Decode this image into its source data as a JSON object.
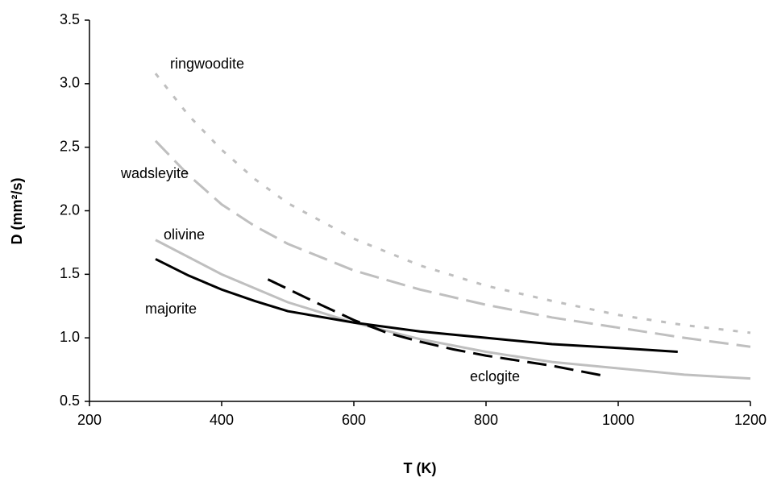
{
  "chart_data": {
    "type": "line",
    "x_label": "T (K)",
    "y_label": "D  (mm²/s)",
    "xlim": [
      200,
      1200
    ],
    "xticks": [
      200,
      400,
      600,
      800,
      1000,
      1200
    ],
    "ylim": [
      0.5,
      3.5
    ],
    "yticks": [
      0.5,
      {
        "value": 1,
        "label": "1.0"
      },
      1.5,
      {
        "value": 2,
        "label": "2.0"
      },
      2.5,
      {
        "value": 3,
        "label": "3.0"
      },
      3.5
    ],
    "grid": false,
    "series": [
      {
        "name": "ringwoodite",
        "color": "#bfbfbf",
        "style": "dotted",
        "x": [
          300,
          350,
          400,
          450,
          500,
          600,
          700,
          800,
          900,
          1000,
          1100,
          1200
        ],
        "values": [
          3.08,
          2.75,
          2.48,
          2.25,
          2.06,
          1.78,
          1.57,
          1.41,
          1.29,
          1.18,
          1.1,
          1.04
        ]
      },
      {
        "name": "wadsleyite",
        "color": "#bfbfbf",
        "style": "dashed",
        "x": [
          300,
          350,
          400,
          450,
          500,
          600,
          700,
          800,
          900,
          1000,
          1100,
          1200
        ],
        "values": [
          2.55,
          2.28,
          2.05,
          1.88,
          1.74,
          1.53,
          1.38,
          1.26,
          1.16,
          1.08,
          1.0,
          0.93
        ]
      },
      {
        "name": "olivine",
        "color": "#bfbfbf",
        "style": "solid",
        "x": [
          300,
          400,
          500,
          600,
          700,
          800,
          900,
          1000,
          1100,
          1200
        ],
        "values": [
          1.77,
          1.5,
          1.28,
          1.12,
          0.99,
          0.89,
          0.81,
          0.76,
          0.71,
          0.68
        ]
      },
      {
        "name": "majorite",
        "color": "#000000",
        "style": "solid",
        "x": [
          300,
          350,
          400,
          450,
          500,
          600,
          700,
          800,
          900,
          1000,
          1090
        ],
        "values": [
          1.62,
          1.49,
          1.38,
          1.29,
          1.21,
          1.12,
          1.05,
          1.0,
          0.95,
          0.92,
          0.89
        ]
      },
      {
        "name": "eclogite",
        "color": "#000000",
        "style": "dashed",
        "x": [
          470,
          550,
          600,
          650,
          700,
          750,
          800,
          900,
          980
        ],
        "values": [
          1.46,
          1.26,
          1.14,
          1.04,
          0.97,
          0.91,
          0.86,
          0.78,
          0.7
        ]
      }
    ]
  }
}
